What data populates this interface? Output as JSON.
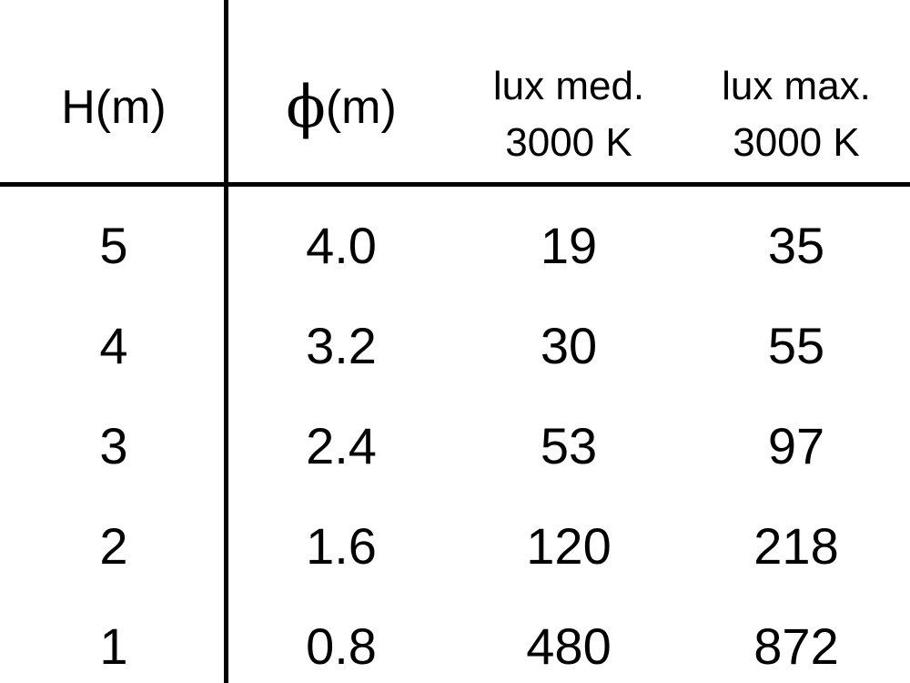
{
  "table": {
    "headers": [
      {
        "line1": "H(m)"
      },
      {
        "symbol": "ϕ",
        "unit": "(m)"
      },
      {
        "line1": "lux med.",
        "line2": "3000 K"
      },
      {
        "line1": "lux max.",
        "line2": "3000 K"
      }
    ],
    "rows": [
      [
        "5",
        "4.0",
        "19",
        "35"
      ],
      [
        "4",
        "3.2",
        "30",
        "55"
      ],
      [
        "3",
        "2.4",
        "53",
        "97"
      ],
      [
        "2",
        "1.6",
        "120",
        "218"
      ],
      [
        "1",
        "0.8",
        "480",
        "872"
      ]
    ]
  }
}
